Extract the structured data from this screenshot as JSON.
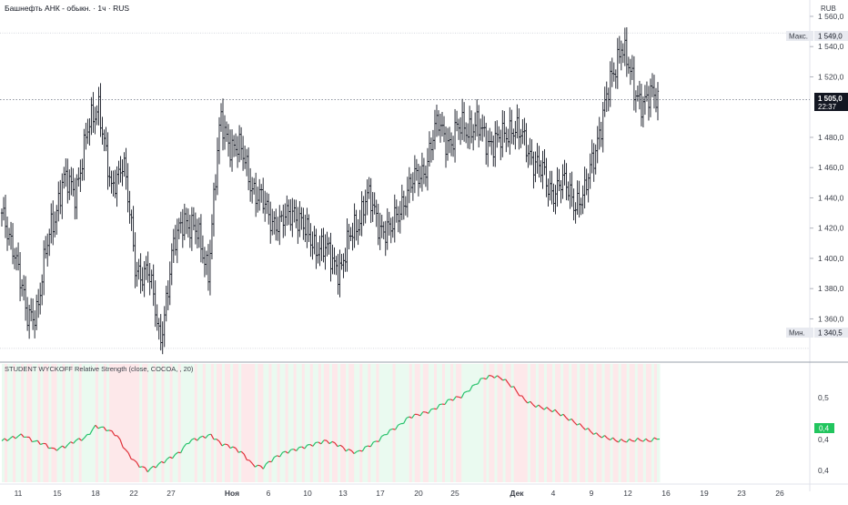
{
  "header": {
    "symbol_title": "Башнефть АНК - обыкн. · 1ч · RUS",
    "currency": "RUB"
  },
  "colors": {
    "bars": "#131722",
    "up": "#26c26b",
    "down": "#e0313a",
    "bg_up": "#eafaf0",
    "bg_down": "#fde8ea",
    "last_price_bg": "#131722",
    "indicator_badge": "#22c55e",
    "grid": "#e6e8ee",
    "axis_text": "#3b3f48"
  },
  "price_labels": {
    "max_label": "Макс.",
    "max_value": "1 549,0",
    "min_label": "Мин.",
    "min_value": "1 340,5",
    "last_price": "1 505,0",
    "countdown": "22:37"
  },
  "indicator": {
    "title": "STUDENT WYCKOFF Relative Strength (close, COCOA, , 20)",
    "current_value": "0,4"
  },
  "chart_data": [
    {
      "type": "ohlc",
      "description_unit": "RUB",
      "y_ticks": [
        "1 560,0",
        "1 540,0",
        "1 520,0",
        "1 480,0",
        "1 460,0",
        "1 440,0",
        "1 420,0",
        "1 400,0",
        "1 380,0",
        "1 360,0"
      ],
      "ylim": [
        1335,
        1566
      ],
      "x_ticks": [
        "11",
        "15",
        "18",
        "22",
        "27",
        "Ноя",
        "6",
        "10",
        "13",
        "17",
        "20",
        "25",
        "Дек",
        "4",
        "9",
        "12",
        "16",
        "19",
        "23",
        "26"
      ],
      "max": 1549.0,
      "min": 1340.5,
      "last": 1505.0,
      "close_path": [
        [
          "11",
          1425
        ],
        [
          "13",
          1410
        ],
        [
          "15",
          1360
        ],
        [
          "16",
          1370
        ],
        [
          "17",
          1420
        ],
        [
          "18",
          1450
        ],
        [
          "19",
          1445
        ],
        [
          "20",
          1480
        ],
        [
          "21",
          1505
        ],
        [
          "22",
          1440
        ],
        [
          "23",
          1470
        ],
        [
          "24",
          1390
        ],
        [
          "26",
          1395
        ],
        [
          "27",
          1345
        ],
        [
          "28",
          1400
        ],
        [
          "29",
          1430
        ],
        [
          "30",
          1415
        ],
        [
          "31",
          1395
        ],
        [
          "Ноя",
          1490
        ],
        [
          "2",
          1475
        ],
        [
          "3",
          1465
        ],
        [
          "5",
          1440
        ],
        [
          "6",
          1430
        ],
        [
          "7",
          1420
        ],
        [
          "8",
          1435
        ],
        [
          "10",
          1415
        ],
        [
          "11",
          1410
        ],
        [
          "12",
          1400
        ],
        [
          "13",
          1395
        ],
        [
          "14",
          1420
        ],
        [
          "15",
          1440
        ],
        [
          "17",
          1425
        ],
        [
          "18",
          1415
        ],
        [
          "19",
          1440
        ],
        [
          "20",
          1450
        ],
        [
          "21",
          1465
        ],
        [
          "22",
          1490
        ],
        [
          "24",
          1475
        ],
        [
          "25",
          1490
        ],
        [
          "26",
          1485
        ],
        [
          "27",
          1480
        ],
        [
          "28",
          1475
        ],
        [
          "Дек",
          1490
        ],
        [
          "2",
          1475
        ],
        [
          "3",
          1465
        ],
        [
          "4",
          1445
        ],
        [
          "5",
          1450
        ],
        [
          "6",
          1440
        ],
        [
          "9",
          1440
        ],
        [
          "10",
          1480
        ],
        [
          "11",
          1510
        ],
        [
          "12",
          1545
        ],
        [
          "13",
          1510
        ],
        [
          "14",
          1505
        ],
        [
          "16",
          1505
        ]
      ]
    },
    {
      "type": "line",
      "name": "STUDENT WYCKOFF Relative Strength",
      "y_ticks": [
        "0,5",
        "0,4",
        "0,4"
      ],
      "ylim": [
        0.36,
        0.56
      ],
      "last": 0.43,
      "values": [
        0.43,
        0.435,
        0.44,
        0.43,
        0.425,
        0.415,
        0.42,
        0.43,
        0.435,
        0.455,
        0.45,
        0.44,
        0.41,
        0.39,
        0.38,
        0.39,
        0.4,
        0.41,
        0.43,
        0.435,
        0.44,
        0.425,
        0.42,
        0.41,
        0.39,
        0.385,
        0.4,
        0.41,
        0.415,
        0.42,
        0.425,
        0.43,
        0.425,
        0.415,
        0.41,
        0.42,
        0.43,
        0.445,
        0.455,
        0.47,
        0.475,
        0.48,
        0.49,
        0.5,
        0.505,
        0.52,
        0.535,
        0.54,
        0.535,
        0.52,
        0.5,
        0.49,
        0.485,
        0.48,
        0.47,
        0.46,
        0.45,
        0.44,
        0.435,
        0.43,
        0.43,
        0.432,
        0.43,
        0.435
      ]
    }
  ]
}
